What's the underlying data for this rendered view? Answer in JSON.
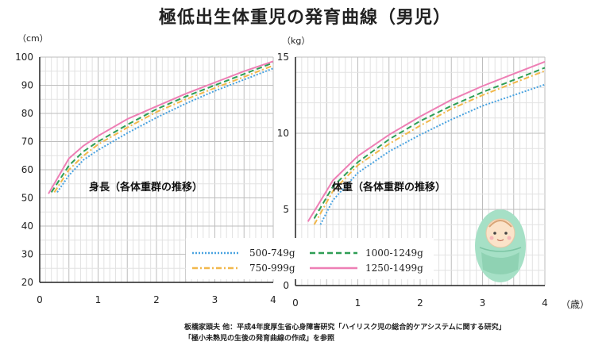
{
  "title": "極低出生体重児の発育曲線（男児）",
  "credit": {
    "line1": "板橋家頭夫 他：平成4年度厚生省心身障害研究「ハイリスク児の総合的ケアシステムに関する研究」",
    "line2": "「極小未熟児の生後の発育曲線の作成」を参照"
  },
  "x_unit": "（歳）",
  "series_styles": [
    {
      "name": "500-749g",
      "color": "#4aa3e0",
      "dash": "2,2"
    },
    {
      "name": "750-999g",
      "color": "#f2b84b",
      "dash": "7,3,2,3"
    },
    {
      "name": "1000-1249g",
      "color": "#2e9e55",
      "dash": "7,4"
    },
    {
      "name": "1250-1499g",
      "color": "#ee7fb5",
      "dash": ""
    }
  ],
  "colors": {
    "grid_major": "#bdbdbd",
    "grid_minor": "#e2e2e2",
    "axis": "#222222",
    "baby_wrap": "#a6e0c6"
  },
  "icon": "baby-swaddled-icon",
  "chart_data": [
    {
      "type": "line",
      "label": "身長（各体重群の推移）",
      "ylabel": "（cm）",
      "x_ticks": [
        0,
        1,
        2,
        3,
        4
      ],
      "y_ticks": [
        20,
        30,
        40,
        50,
        60,
        70,
        80,
        90,
        100
      ],
      "xlim": [
        0,
        4
      ],
      "ylim": [
        20,
        100
      ],
      "grid": true,
      "series": [
        {
          "name": "500-749g",
          "x": [
            0.3,
            0.5,
            0.75,
            1,
            1.5,
            2,
            2.5,
            3,
            3.5,
            4
          ],
          "y": [
            52,
            58,
            63.5,
            67,
            73,
            78.5,
            83.5,
            88,
            92,
            96
          ]
        },
        {
          "name": "750-999g",
          "x": [
            0.25,
            0.5,
            0.75,
            1,
            1.5,
            2,
            2.5,
            3,
            3.5,
            4
          ],
          "y": [
            52,
            60,
            65,
            69,
            75,
            80.5,
            85,
            89,
            93,
            97
          ]
        },
        {
          "name": "1000-1249g",
          "x": [
            0.2,
            0.5,
            0.75,
            1,
            1.5,
            2,
            2.5,
            3,
            3.5,
            4
          ],
          "y": [
            52,
            61.5,
            66.5,
            70,
            76,
            81.5,
            86,
            90,
            94,
            98
          ]
        },
        {
          "name": "1250-1499g",
          "x": [
            0.15,
            0.5,
            0.75,
            1,
            1.5,
            2,
            2.5,
            3,
            3.5,
            4
          ],
          "y": [
            51.5,
            64,
            68.5,
            72,
            78,
            82.5,
            87,
            91,
            95,
            98.5
          ]
        }
      ]
    },
    {
      "type": "line",
      "label": "体重（各体重群の推移）",
      "ylabel": "（kg）",
      "x_ticks": [
        0,
        1,
        2,
        3,
        4
      ],
      "y_ticks": [
        0,
        5,
        10,
        15
      ],
      "xlim": [
        0,
        4
      ],
      "ylim": [
        0,
        15
      ],
      "grid": true,
      "series": [
        {
          "name": "500-749g",
          "x": [
            0.4,
            0.6,
            1,
            1.5,
            2,
            2.5,
            3,
            3.5,
            4
          ],
          "y": [
            4,
            5.6,
            7.4,
            8.8,
            9.9,
            10.9,
            11.8,
            12.5,
            13.2
          ]
        },
        {
          "name": "750-999g",
          "x": [
            0.3,
            0.6,
            1,
            1.5,
            2,
            2.5,
            3,
            3.5,
            4
          ],
          "y": [
            4,
            6.2,
            7.9,
            9.3,
            10.5,
            11.6,
            12.5,
            13.3,
            14.1
          ]
        },
        {
          "name": "1000-1249g",
          "x": [
            0.3,
            0.6,
            1,
            1.5,
            2,
            2.5,
            3,
            3.5,
            4
          ],
          "y": [
            4.4,
            6.5,
            8.1,
            9.6,
            10.8,
            11.8,
            12.7,
            13.5,
            14.3
          ]
        },
        {
          "name": "1250-1499g",
          "x": [
            0.2,
            0.6,
            1,
            1.5,
            2,
            2.5,
            3,
            3.5,
            4
          ],
          "y": [
            4.2,
            6.9,
            8.5,
            9.9,
            11.1,
            12.2,
            13.1,
            13.9,
            14.7
          ]
        }
      ]
    }
  ]
}
